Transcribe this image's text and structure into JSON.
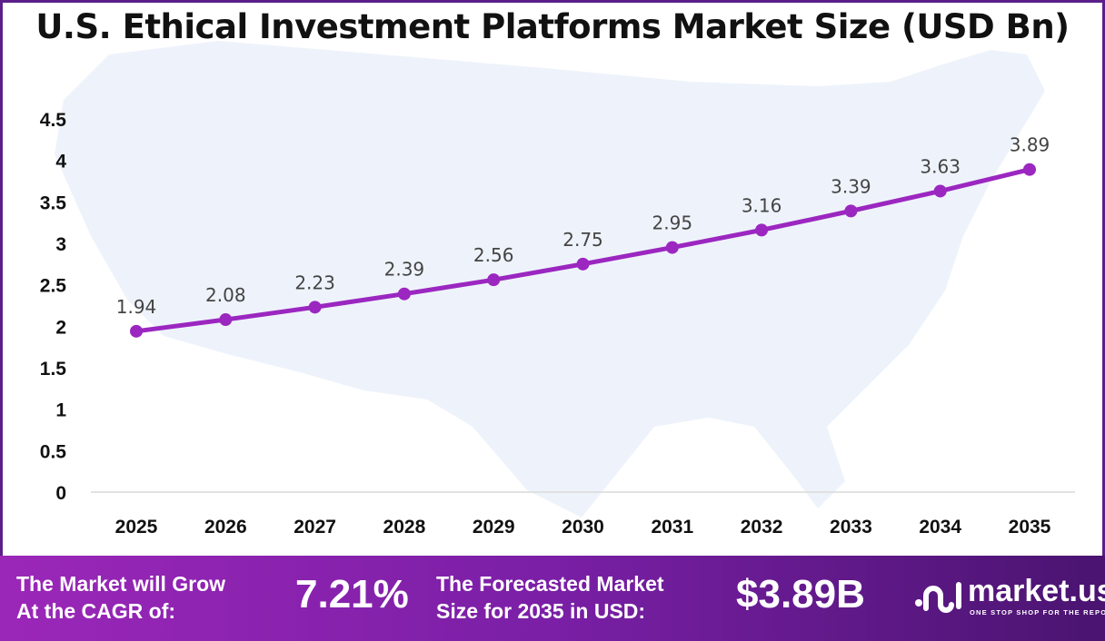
{
  "chart_data": {
    "type": "line",
    "title": "U.S. Ethical Investment Platforms Market Size (USD Bn)",
    "categories": [
      "2025",
      "2026",
      "2027",
      "2028",
      "2029",
      "2030",
      "2031",
      "2032",
      "2033",
      "2034",
      "2035"
    ],
    "values": [
      1.94,
      2.08,
      2.23,
      2.39,
      2.56,
      2.75,
      2.95,
      3.16,
      3.39,
      3.63,
      3.89
    ],
    "data_labels": [
      "1.94",
      "2.08",
      "2.23",
      "2.39",
      "2.56",
      "2.75",
      "2.95",
      "3.16",
      "3.39",
      "3.63",
      "3.89"
    ],
    "yticks": [
      "0",
      "0.5",
      "1",
      "1.5",
      "2",
      "2.5",
      "3",
      "3.5",
      "4",
      "4.5"
    ],
    "ylim": [
      0,
      4.5
    ],
    "grid": false,
    "line_color": "#9b27c0",
    "background": "U.S. map silhouette"
  },
  "footer": {
    "cagr_label": "The Market will Grow At the CAGR of:",
    "cagr_label_l1": "The Market will Grow",
    "cagr_label_l2": "At the CAGR of:",
    "cagr_value": "7.21%",
    "forecast_label_l1": "The Forecasted Market",
    "forecast_label_l2": "Size for 2035 in USD:",
    "forecast_value": "$3.89B",
    "logo_name": "market.us",
    "logo_tagline": "ONE STOP SHOP FOR THE REPORTS"
  }
}
